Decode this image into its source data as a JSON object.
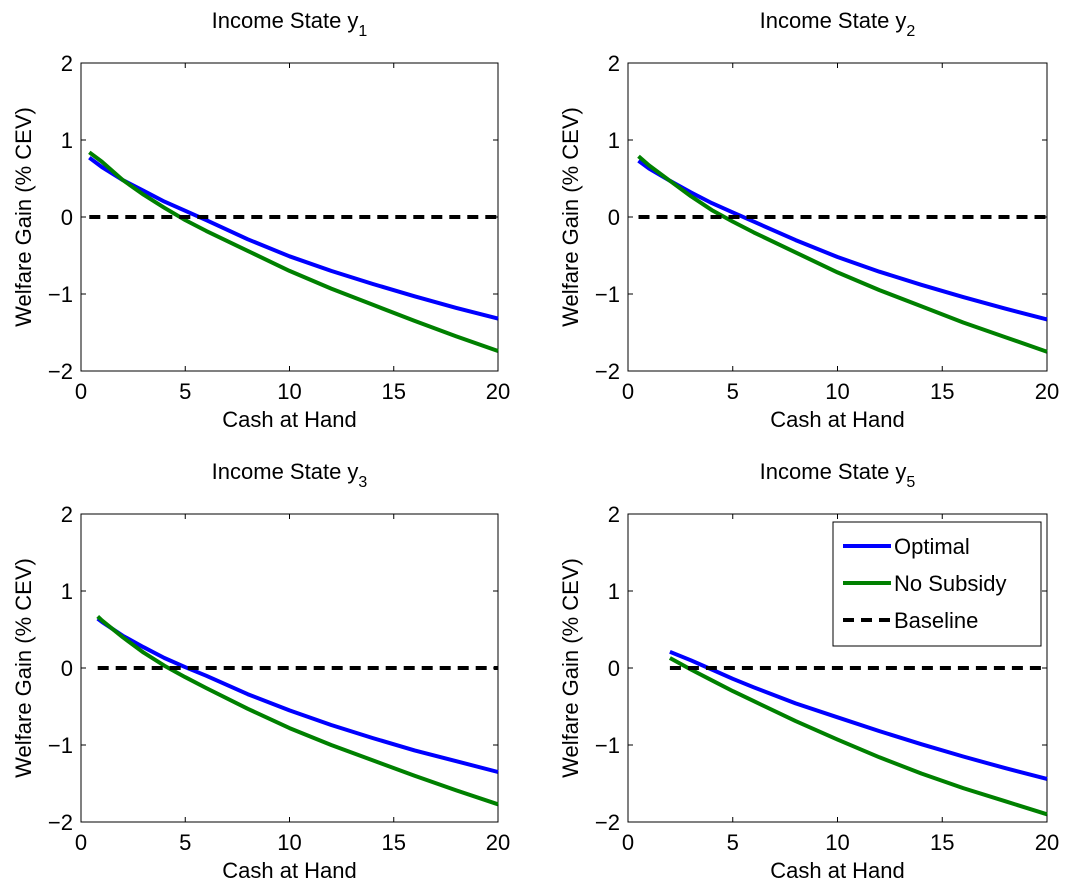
{
  "chart_data": [
    {
      "type": "line",
      "title": "Income State y",
      "title_subscript": "1",
      "xlabel": "Cash at Hand",
      "ylabel": "Welfare Gain (% CEV)",
      "xlim": [
        0,
        20
      ],
      "ylim": [
        -2,
        2
      ],
      "xticks": [
        0,
        5,
        10,
        15,
        20
      ],
      "yticks": [
        -2,
        -1,
        0,
        1,
        2
      ],
      "grid": false,
      "legend": false,
      "series": [
        {
          "name": "Optimal",
          "color": "#0000ff",
          "style": "solid",
          "x": [
            0.4,
            1,
            2,
            3,
            4,
            5,
            6,
            8,
            10,
            12,
            14,
            16,
            18,
            20
          ],
          "y": [
            0.77,
            0.65,
            0.48,
            0.34,
            0.2,
            0.08,
            -0.04,
            -0.29,
            -0.51,
            -0.7,
            -0.87,
            -1.03,
            -1.18,
            -1.32
          ]
        },
        {
          "name": "No Subsidy",
          "color": "#008000",
          "style": "solid",
          "x": [
            0.4,
            1,
            2,
            3,
            4,
            5,
            6,
            8,
            10,
            12,
            14,
            16,
            18,
            20
          ],
          "y": [
            0.84,
            0.72,
            0.48,
            0.29,
            0.12,
            -0.04,
            -0.18,
            -0.44,
            -0.7,
            -0.93,
            -1.14,
            -1.35,
            -1.55,
            -1.74
          ]
        },
        {
          "name": "Baseline",
          "color": "#000000",
          "style": "dashed",
          "x": [
            0.4,
            20
          ],
          "y": [
            0,
            0
          ]
        }
      ]
    },
    {
      "type": "line",
      "title": "Income State y",
      "title_subscript": "2",
      "xlabel": "Cash at Hand",
      "ylabel": "Welfare Gain (% CEV)",
      "xlim": [
        0,
        20
      ],
      "ylim": [
        -2,
        2
      ],
      "xticks": [
        0,
        5,
        10,
        15,
        20
      ],
      "yticks": [
        -2,
        -1,
        0,
        1,
        2
      ],
      "grid": false,
      "legend": false,
      "series": [
        {
          "name": "Optimal",
          "color": "#0000ff",
          "style": "solid",
          "x": [
            0.5,
            1,
            2,
            3,
            4,
            5,
            6,
            8,
            10,
            12,
            14,
            16,
            18,
            20
          ],
          "y": [
            0.73,
            0.63,
            0.47,
            0.32,
            0.18,
            0.06,
            -0.06,
            -0.3,
            -0.52,
            -0.71,
            -0.88,
            -1.04,
            -1.19,
            -1.33
          ]
        },
        {
          "name": "No Subsidy",
          "color": "#008000",
          "style": "solid",
          "x": [
            0.5,
            1,
            2,
            3,
            4,
            5,
            6,
            8,
            10,
            12,
            14,
            16,
            18,
            20
          ],
          "y": [
            0.79,
            0.67,
            0.47,
            0.27,
            0.09,
            -0.06,
            -0.2,
            -0.46,
            -0.72,
            -0.95,
            -1.16,
            -1.37,
            -1.56,
            -1.75
          ]
        },
        {
          "name": "Baseline",
          "color": "#000000",
          "style": "dashed",
          "x": [
            0.5,
            20
          ],
          "y": [
            0,
            0
          ]
        }
      ]
    },
    {
      "type": "line",
      "title": "Income State y",
      "title_subscript": "3",
      "xlabel": "Cash at Hand",
      "ylabel": "Welfare Gain (% CEV)",
      "xlim": [
        0,
        20
      ],
      "ylim": [
        -2,
        2
      ],
      "xticks": [
        0,
        5,
        10,
        15,
        20
      ],
      "yticks": [
        -2,
        -1,
        0,
        1,
        2
      ],
      "grid": false,
      "legend": false,
      "series": [
        {
          "name": "Optimal",
          "color": "#0000ff",
          "style": "solid",
          "x": [
            0.8,
            1,
            2,
            3,
            4,
            5,
            6,
            8,
            10,
            12,
            14,
            16,
            18,
            20
          ],
          "y": [
            0.64,
            0.6,
            0.42,
            0.27,
            0.13,
            0.01,
            -0.1,
            -0.34,
            -0.55,
            -0.74,
            -0.91,
            -1.07,
            -1.21,
            -1.35
          ]
        },
        {
          "name": "No Subsidy",
          "color": "#008000",
          "style": "solid",
          "x": [
            0.8,
            1,
            2,
            3,
            4,
            5,
            6,
            8,
            10,
            12,
            14,
            16,
            18,
            20
          ],
          "y": [
            0.67,
            0.62,
            0.4,
            0.2,
            0.03,
            -0.12,
            -0.26,
            -0.53,
            -0.78,
            -1.0,
            -1.2,
            -1.4,
            -1.59,
            -1.77
          ]
        },
        {
          "name": "Baseline",
          "color": "#000000",
          "style": "dashed",
          "x": [
            0.8,
            20
          ],
          "y": [
            0,
            0
          ]
        }
      ]
    },
    {
      "type": "line",
      "title": "Income State y",
      "title_subscript": "5",
      "xlabel": "Cash at Hand",
      "ylabel": "Welfare Gain (% CEV)",
      "xlim": [
        0,
        20
      ],
      "ylim": [
        -2,
        2
      ],
      "xticks": [
        0,
        5,
        10,
        15,
        20
      ],
      "yticks": [
        -2,
        -1,
        0,
        1,
        2
      ],
      "grid": false,
      "legend": true,
      "legend_position": "top-right",
      "series": [
        {
          "name": "Optimal",
          "color": "#0000ff",
          "style": "solid",
          "x": [
            2,
            3,
            4,
            5,
            6,
            8,
            10,
            12,
            14,
            16,
            18,
            20
          ],
          "y": [
            0.21,
            0.1,
            -0.02,
            -0.14,
            -0.25,
            -0.46,
            -0.64,
            -0.82,
            -0.99,
            -1.15,
            -1.3,
            -1.44
          ]
        },
        {
          "name": "No Subsidy",
          "color": "#008000",
          "style": "solid",
          "x": [
            2,
            3,
            4,
            5,
            6,
            8,
            10,
            12,
            14,
            16,
            18,
            20
          ],
          "y": [
            0.13,
            -0.02,
            -0.16,
            -0.3,
            -0.43,
            -0.69,
            -0.93,
            -1.16,
            -1.37,
            -1.56,
            -1.73,
            -1.9
          ]
        },
        {
          "name": "Baseline",
          "color": "#000000",
          "style": "dashed",
          "x": [
            2,
            20
          ],
          "y": [
            0,
            0
          ]
        }
      ]
    }
  ]
}
